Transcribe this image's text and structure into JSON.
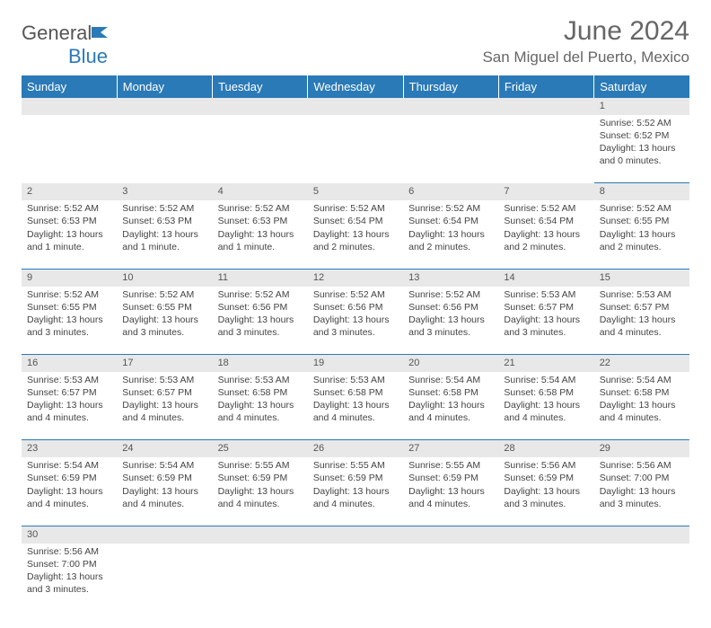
{
  "brand": {
    "text1": "General",
    "text2": "Blue"
  },
  "title": "June 2024",
  "location": "San Miguel del Puerto, Mexico",
  "colors": {
    "header_bg": "#2a7ab8",
    "daynum_bg": "#e8e8e8",
    "text": "#444",
    "title": "#666"
  },
  "dayHeaders": [
    "Sunday",
    "Monday",
    "Tuesday",
    "Wednesday",
    "Thursday",
    "Friday",
    "Saturday"
  ],
  "weeks": [
    {
      "nums": [
        "",
        "",
        "",
        "",
        "",
        "",
        "1"
      ],
      "cells": [
        null,
        null,
        null,
        null,
        null,
        null,
        {
          "sr": "Sunrise: 5:52 AM",
          "ss": "Sunset: 6:52 PM",
          "d1": "Daylight: 13 hours",
          "d2": "and 0 minutes."
        }
      ]
    },
    {
      "nums": [
        "2",
        "3",
        "4",
        "5",
        "6",
        "7",
        "8"
      ],
      "cells": [
        {
          "sr": "Sunrise: 5:52 AM",
          "ss": "Sunset: 6:53 PM",
          "d1": "Daylight: 13 hours",
          "d2": "and 1 minute."
        },
        {
          "sr": "Sunrise: 5:52 AM",
          "ss": "Sunset: 6:53 PM",
          "d1": "Daylight: 13 hours",
          "d2": "and 1 minute."
        },
        {
          "sr": "Sunrise: 5:52 AM",
          "ss": "Sunset: 6:53 PM",
          "d1": "Daylight: 13 hours",
          "d2": "and 1 minute."
        },
        {
          "sr": "Sunrise: 5:52 AM",
          "ss": "Sunset: 6:54 PM",
          "d1": "Daylight: 13 hours",
          "d2": "and 2 minutes."
        },
        {
          "sr": "Sunrise: 5:52 AM",
          "ss": "Sunset: 6:54 PM",
          "d1": "Daylight: 13 hours",
          "d2": "and 2 minutes."
        },
        {
          "sr": "Sunrise: 5:52 AM",
          "ss": "Sunset: 6:54 PM",
          "d1": "Daylight: 13 hours",
          "d2": "and 2 minutes."
        },
        {
          "sr": "Sunrise: 5:52 AM",
          "ss": "Sunset: 6:55 PM",
          "d1": "Daylight: 13 hours",
          "d2": "and 2 minutes."
        }
      ]
    },
    {
      "nums": [
        "9",
        "10",
        "11",
        "12",
        "13",
        "14",
        "15"
      ],
      "cells": [
        {
          "sr": "Sunrise: 5:52 AM",
          "ss": "Sunset: 6:55 PM",
          "d1": "Daylight: 13 hours",
          "d2": "and 3 minutes."
        },
        {
          "sr": "Sunrise: 5:52 AM",
          "ss": "Sunset: 6:55 PM",
          "d1": "Daylight: 13 hours",
          "d2": "and 3 minutes."
        },
        {
          "sr": "Sunrise: 5:52 AM",
          "ss": "Sunset: 6:56 PM",
          "d1": "Daylight: 13 hours",
          "d2": "and 3 minutes."
        },
        {
          "sr": "Sunrise: 5:52 AM",
          "ss": "Sunset: 6:56 PM",
          "d1": "Daylight: 13 hours",
          "d2": "and 3 minutes."
        },
        {
          "sr": "Sunrise: 5:52 AM",
          "ss": "Sunset: 6:56 PM",
          "d1": "Daylight: 13 hours",
          "d2": "and 3 minutes."
        },
        {
          "sr": "Sunrise: 5:53 AM",
          "ss": "Sunset: 6:57 PM",
          "d1": "Daylight: 13 hours",
          "d2": "and 3 minutes."
        },
        {
          "sr": "Sunrise: 5:53 AM",
          "ss": "Sunset: 6:57 PM",
          "d1": "Daylight: 13 hours",
          "d2": "and 4 minutes."
        }
      ]
    },
    {
      "nums": [
        "16",
        "17",
        "18",
        "19",
        "20",
        "21",
        "22"
      ],
      "cells": [
        {
          "sr": "Sunrise: 5:53 AM",
          "ss": "Sunset: 6:57 PM",
          "d1": "Daylight: 13 hours",
          "d2": "and 4 minutes."
        },
        {
          "sr": "Sunrise: 5:53 AM",
          "ss": "Sunset: 6:57 PM",
          "d1": "Daylight: 13 hours",
          "d2": "and 4 minutes."
        },
        {
          "sr": "Sunrise: 5:53 AM",
          "ss": "Sunset: 6:58 PM",
          "d1": "Daylight: 13 hours",
          "d2": "and 4 minutes."
        },
        {
          "sr": "Sunrise: 5:53 AM",
          "ss": "Sunset: 6:58 PM",
          "d1": "Daylight: 13 hours",
          "d2": "and 4 minutes."
        },
        {
          "sr": "Sunrise: 5:54 AM",
          "ss": "Sunset: 6:58 PM",
          "d1": "Daylight: 13 hours",
          "d2": "and 4 minutes."
        },
        {
          "sr": "Sunrise: 5:54 AM",
          "ss": "Sunset: 6:58 PM",
          "d1": "Daylight: 13 hours",
          "d2": "and 4 minutes."
        },
        {
          "sr": "Sunrise: 5:54 AM",
          "ss": "Sunset: 6:58 PM",
          "d1": "Daylight: 13 hours",
          "d2": "and 4 minutes."
        }
      ]
    },
    {
      "nums": [
        "23",
        "24",
        "25",
        "26",
        "27",
        "28",
        "29"
      ],
      "cells": [
        {
          "sr": "Sunrise: 5:54 AM",
          "ss": "Sunset: 6:59 PM",
          "d1": "Daylight: 13 hours",
          "d2": "and 4 minutes."
        },
        {
          "sr": "Sunrise: 5:54 AM",
          "ss": "Sunset: 6:59 PM",
          "d1": "Daylight: 13 hours",
          "d2": "and 4 minutes."
        },
        {
          "sr": "Sunrise: 5:55 AM",
          "ss": "Sunset: 6:59 PM",
          "d1": "Daylight: 13 hours",
          "d2": "and 4 minutes."
        },
        {
          "sr": "Sunrise: 5:55 AM",
          "ss": "Sunset: 6:59 PM",
          "d1": "Daylight: 13 hours",
          "d2": "and 4 minutes."
        },
        {
          "sr": "Sunrise: 5:55 AM",
          "ss": "Sunset: 6:59 PM",
          "d1": "Daylight: 13 hours",
          "d2": "and 4 minutes."
        },
        {
          "sr": "Sunrise: 5:56 AM",
          "ss": "Sunset: 6:59 PM",
          "d1": "Daylight: 13 hours",
          "d2": "and 3 minutes."
        },
        {
          "sr": "Sunrise: 5:56 AM",
          "ss": "Sunset: 7:00 PM",
          "d1": "Daylight: 13 hours",
          "d2": "and 3 minutes."
        }
      ]
    },
    {
      "nums": [
        "30",
        "",
        "",
        "",
        "",
        "",
        ""
      ],
      "cells": [
        {
          "sr": "Sunrise: 5:56 AM",
          "ss": "Sunset: 7:00 PM",
          "d1": "Daylight: 13 hours",
          "d2": "and 3 minutes."
        },
        null,
        null,
        null,
        null,
        null,
        null
      ]
    }
  ]
}
